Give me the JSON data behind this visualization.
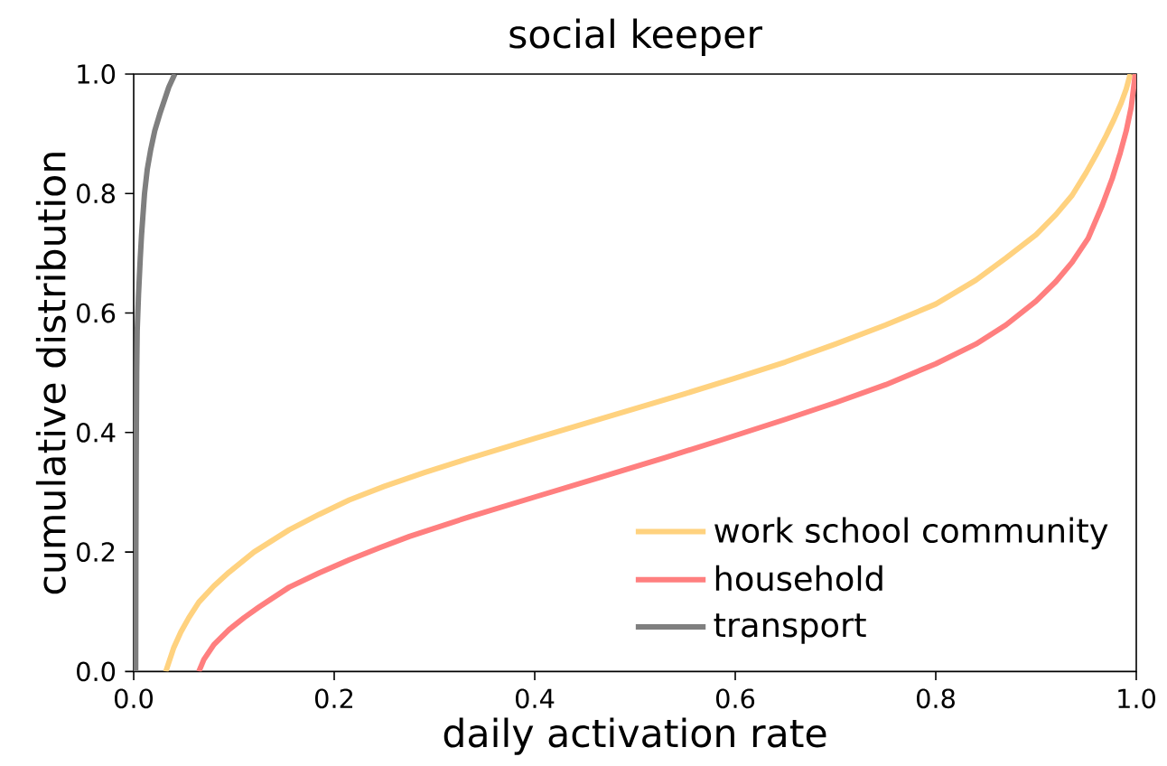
{
  "chart_data": {
    "type": "line",
    "title": "social keeper",
    "xlabel": "daily activation rate",
    "ylabel": "cumulative distribution",
    "xlim": [
      0,
      1
    ],
    "ylim": [
      0,
      1
    ],
    "xticks": [
      {
        "value": 0,
        "label": "0.0"
      },
      0.2,
      0.4,
      0.6,
      0.8,
      {
        "value": 1,
        "label": "1.0"
      }
    ],
    "yticks": [
      {
        "value": 0,
        "label": "0.0"
      },
      0.2,
      0.4,
      0.6,
      0.8,
      {
        "value": 1,
        "label": "1.0"
      }
    ],
    "legend": "bottom right",
    "series": [
      {
        "name": "work school community",
        "color": "#ffd27f",
        "x": [
          0.032,
          0.04,
          0.047,
          0.055,
          0.065,
          0.08,
          0.095,
          0.12,
          0.155,
          0.185,
          0.215,
          0.25,
          0.29,
          0.335,
          0.4,
          0.45,
          0.5,
          0.55,
          0.6,
          0.65,
          0.7,
          0.75,
          0.8,
          0.84,
          0.87,
          0.9,
          0.92,
          0.936,
          0.95,
          0.96,
          0.97,
          0.978,
          0.985,
          0.99,
          0.994
        ],
        "values": [
          0,
          0.04,
          0.066,
          0.09,
          0.116,
          0.143,
          0.166,
          0.2,
          0.237,
          0.263,
          0.287,
          0.31,
          0.333,
          0.357,
          0.39,
          0.415,
          0.44,
          0.465,
          0.491,
          0.518,
          0.548,
          0.58,
          0.615,
          0.655,
          0.692,
          0.731,
          0.765,
          0.797,
          0.835,
          0.865,
          0.897,
          0.925,
          0.952,
          0.975,
          1.0
        ]
      },
      {
        "name": "household",
        "color": "#ff7f7f",
        "x": [
          0.065,
          0.07,
          0.08,
          0.095,
          0.11,
          0.125,
          0.155,
          0.185,
          0.215,
          0.245,
          0.275,
          0.335,
          0.4,
          0.467,
          0.53,
          0.587,
          0.65,
          0.7,
          0.75,
          0.8,
          0.84,
          0.87,
          0.9,
          0.92,
          0.936,
          0.952,
          0.966,
          0.976,
          0.984,
          0.99,
          0.995,
          0.999
        ],
        "values": [
          0,
          0.02,
          0.045,
          0.07,
          0.09,
          0.108,
          0.141,
          0.165,
          0.187,
          0.207,
          0.226,
          0.259,
          0.292,
          0.326,
          0.358,
          0.388,
          0.422,
          0.45,
          0.48,
          0.515,
          0.548,
          0.58,
          0.62,
          0.653,
          0.685,
          0.725,
          0.78,
          0.825,
          0.868,
          0.905,
          0.945,
          1.0
        ]
      },
      {
        "name": "transport",
        "color": "#7f7f7f",
        "x": [
          0.002,
          0.0022,
          0.0025,
          0.003,
          0.0035,
          0.0048,
          0.0065,
          0.0078,
          0.0108,
          0.0135,
          0.0168,
          0.021,
          0.026,
          0.031,
          0.035,
          0.041
        ],
        "values": [
          0,
          0.2,
          0.35,
          0.5,
          0.57,
          0.63,
          0.69,
          0.73,
          0.8,
          0.84,
          0.872,
          0.905,
          0.933,
          0.958,
          0.978,
          1.0
        ]
      }
    ]
  }
}
